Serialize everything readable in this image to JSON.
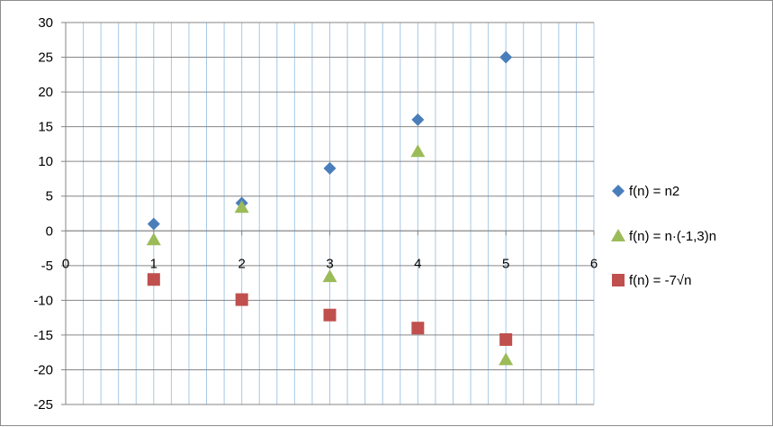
{
  "chart_data": {
    "type": "scatter",
    "title": "",
    "xlabel": "",
    "ylabel": "",
    "xlim": [
      0,
      6
    ],
    "ylim": [
      -25,
      30
    ],
    "x_ticks": [
      0,
      1,
      2,
      3,
      4,
      5,
      6
    ],
    "y_ticks": [
      -25,
      -20,
      -15,
      -10,
      -5,
      0,
      5,
      10,
      15,
      20,
      25,
      30
    ],
    "x_tick_labels": [
      "0",
      "1",
      "2",
      "3",
      "4",
      "5",
      "6"
    ],
    "y_tick_labels": [
      "-25",
      "-20",
      "-15",
      "-10",
      "-5",
      "0",
      "5",
      "10",
      "15",
      "20",
      "25",
      "30"
    ],
    "grid": true,
    "legend_position": "right",
    "series": [
      {
        "name": "f(n) = n2",
        "marker": "diamond",
        "color": "#4a7ebb",
        "x": [
          1,
          2,
          3,
          4,
          5
        ],
        "y": [
          1,
          4,
          9,
          16,
          25
        ]
      },
      {
        "name": "f(n) = n·(-1,3)n",
        "marker": "triangle",
        "color": "#9bbb59",
        "x": [
          1,
          2,
          3,
          4,
          5
        ],
        "y": [
          -1.3,
          3.38,
          -6.59,
          11.42,
          -18.56
        ]
      },
      {
        "name": "f(n) = -7√n",
        "marker": "square",
        "color": "#c0504d",
        "x": [
          1,
          2,
          3,
          4,
          5
        ],
        "y": [
          -7,
          -9.9,
          -12.12,
          -14,
          -15.65
        ]
      }
    ]
  }
}
